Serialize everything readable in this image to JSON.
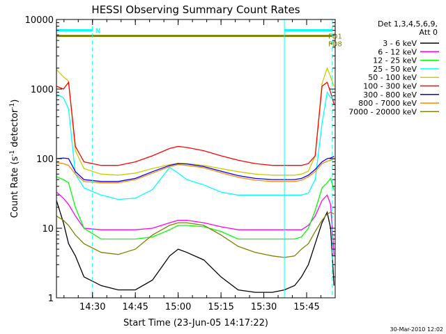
{
  "chart_data": {
    "type": "line",
    "title": "HESSI Observing Summary Count Rates",
    "xlabel": "Start Time (23-Jun-05 14:17:22)",
    "ylabel_main": "Count Rate (s",
    "ylabel_sup1": "-1",
    "ylabel_mid": " detector",
    "ylabel_sup2": "-1",
    "ylabel_end": ")",
    "y_scale": "log",
    "ylim": [
      1,
      10000
    ],
    "xlim": [
      14.2894,
      15.9167
    ],
    "y_ticks": [
      {
        "value": 1,
        "label": "1"
      },
      {
        "value": 10,
        "label": "10"
      },
      {
        "value": 100,
        "label": "100"
      },
      {
        "value": 1000,
        "label": "1000"
      },
      {
        "value": 10000,
        "label": "10000"
      }
    ],
    "x_ticks": [
      {
        "value": 14.5,
        "label": "14:30"
      },
      {
        "value": 14.75,
        "label": "14:45"
      },
      {
        "value": 15.0,
        "label": "15:00"
      },
      {
        "value": 15.25,
        "label": "15:15"
      },
      {
        "value": 15.5,
        "label": "15:30"
      },
      {
        "value": 15.75,
        "label": "15:45"
      }
    ],
    "legend_header_1": "Det 1,3,4,5,6,9,",
    "legend_header_2": "Att 0",
    "legend_placement": "right",
    "series": [
      {
        "name": "3 - 6 keV",
        "color": "#000000",
        "x": [
          14.29,
          14.33,
          14.36,
          14.4,
          14.45,
          14.55,
          14.65,
          14.75,
          14.85,
          14.95,
          15.0,
          15.05,
          15.15,
          15.25,
          15.35,
          15.45,
          15.55,
          15.62,
          15.68,
          15.72,
          15.76,
          15.8,
          15.84,
          15.87,
          15.89,
          15.91
        ],
        "y": [
          25,
          12,
          6,
          4,
          2,
          1.5,
          1.3,
          1.3,
          1.8,
          4,
          5,
          4.5,
          3.5,
          2,
          1.3,
          1.2,
          1.2,
          1.3,
          1.5,
          2,
          3,
          6,
          12,
          17,
          10,
          1.5
        ]
      },
      {
        "name": "6 - 12 keV",
        "color": "#ff00ff",
        "x": [
          14.29,
          14.33,
          14.36,
          14.4,
          14.45,
          14.55,
          14.65,
          14.75,
          14.85,
          14.95,
          15.0,
          15.05,
          15.15,
          15.25,
          15.35,
          15.45,
          15.55,
          15.62,
          15.68,
          15.72,
          15.76,
          15.8,
          15.84,
          15.87,
          15.89,
          15.91
        ],
        "y": [
          33,
          27,
          22,
          15,
          10,
          9.5,
          9.5,
          9.5,
          10,
          12,
          13,
          13,
          12,
          10.5,
          9.5,
          9.5,
          9.5,
          9.5,
          9.5,
          9.5,
          11,
          15,
          25,
          30,
          22,
          4
        ]
      },
      {
        "name": "12 - 25 keV",
        "color": "#00ff00",
        "x": [
          14.29,
          14.33,
          14.36,
          14.4,
          14.45,
          14.55,
          14.65,
          14.75,
          14.85,
          14.95,
          15.0,
          15.05,
          15.15,
          15.25,
          15.35,
          15.45,
          15.55,
          15.62,
          15.68,
          15.72,
          15.76,
          15.8,
          15.84,
          15.87,
          15.89,
          15.91
        ],
        "y": [
          55,
          50,
          45,
          20,
          10,
          7,
          7,
          7,
          7.5,
          9.5,
          11,
          11,
          10.5,
          9,
          7,
          7,
          7,
          7,
          7,
          7.5,
          10,
          18,
          38,
          45,
          52,
          35
        ]
      },
      {
        "name": "25 - 50 keV",
        "color": "#00ffff",
        "x": [
          14.29,
          14.33,
          14.36,
          14.4,
          14.45,
          14.55,
          14.65,
          14.75,
          14.85,
          14.95,
          15.0,
          15.05,
          15.15,
          15.25,
          15.35,
          15.45,
          15.55,
          15.62,
          15.68,
          15.72,
          15.76,
          15.8,
          15.84,
          15.87,
          15.89,
          15.91
        ],
        "y": [
          850,
          750,
          520,
          60,
          38,
          30,
          26,
          27,
          36,
          75,
          62,
          50,
          42,
          33,
          30,
          30,
          30,
          30,
          30,
          30,
          32,
          50,
          320,
          900,
          750,
          720
        ]
      },
      {
        "name": "50 - 100 keV",
        "color": "#cccc00",
        "x": [
          14.29,
          14.33,
          14.36,
          14.4,
          14.45,
          14.55,
          14.65,
          14.75,
          14.85,
          14.95,
          15.0,
          15.05,
          15.15,
          15.25,
          15.35,
          15.45,
          15.55,
          15.62,
          15.68,
          15.72,
          15.76,
          15.8,
          15.84,
          15.87,
          15.89,
          15.91
        ],
        "y": [
          1900,
          1500,
          1300,
          130,
          72,
          60,
          58,
          62,
          72,
          82,
          86,
          85,
          80,
          72,
          65,
          60,
          58,
          58,
          58,
          60,
          66,
          110,
          1200,
          2000,
          1500,
          1100
        ]
      },
      {
        "name": "100 - 300 keV",
        "color": "#ff0000",
        "x": [
          14.29,
          14.33,
          14.36,
          14.4,
          14.45,
          14.55,
          14.65,
          14.75,
          14.85,
          14.95,
          15.0,
          15.05,
          15.15,
          15.25,
          15.35,
          15.45,
          15.55,
          15.62,
          15.68,
          15.72,
          15.76,
          15.8,
          15.84,
          15.87,
          15.89,
          15.91
        ],
        "y": [
          1100,
          1000,
          1250,
          150,
          90,
          80,
          80,
          90,
          110,
          140,
          150,
          145,
          130,
          110,
          95,
          85,
          80,
          80,
          80,
          80,
          85,
          110,
          1100,
          1250,
          900,
          600
        ]
      },
      {
        "name": "300 - 800 keV",
        "color": "#0000ff",
        "x": [
          14.29,
          14.33,
          14.36,
          14.4,
          14.45,
          14.55,
          14.65,
          14.75,
          14.85,
          14.95,
          15.0,
          15.05,
          15.15,
          15.25,
          15.35,
          15.45,
          15.55,
          15.62,
          15.68,
          15.72,
          15.76,
          15.8,
          15.84,
          15.87,
          15.89,
          15.91
        ],
        "y": [
          100,
          102,
          100,
          65,
          50,
          47,
          47,
          52,
          65,
          80,
          85,
          84,
          77,
          66,
          57,
          52,
          50,
          50,
          50,
          52,
          58,
          70,
          90,
          100,
          102,
          108
        ]
      },
      {
        "name": "800 - 7000 keV",
        "color": "#ff8800",
        "x": [
          14.29,
          14.33,
          14.36,
          14.4,
          14.45,
          14.55,
          14.65,
          14.75,
          14.85,
          14.95,
          15.0,
          15.05,
          15.15,
          15.25,
          15.35,
          15.45,
          15.55,
          15.62,
          15.68,
          15.72,
          15.76,
          15.8,
          15.84,
          15.87,
          15.89,
          15.91
        ],
        "y": [
          88,
          85,
          80,
          60,
          47,
          45,
          45,
          50,
          62,
          77,
          82,
          80,
          74,
          63,
          54,
          49,
          47,
          47,
          47,
          49,
          55,
          65,
          85,
          92,
          95,
          100
        ]
      },
      {
        "name": "7000 - 20000 keV",
        "color": "#808000",
        "x": [
          14.29,
          14.33,
          14.36,
          14.4,
          14.45,
          14.55,
          14.65,
          14.75,
          14.85,
          14.95,
          15.0,
          15.05,
          15.15,
          15.25,
          15.35,
          15.45,
          15.55,
          15.62,
          15.68,
          15.72,
          15.76,
          15.8,
          15.84,
          15.87,
          15.89,
          15.91
        ],
        "y": [
          15,
          13,
          11,
          8,
          6,
          4.5,
          4.2,
          5,
          8,
          11,
          12,
          12,
          11,
          8,
          5.5,
          4.5,
          4,
          3.8,
          4,
          5,
          6,
          9,
          13,
          16,
          17,
          16
        ]
      }
    ],
    "flags": [
      {
        "label": "",
        "color": "#00ffff",
        "y": 7000,
        "segments": [
          [
            14.29,
            14.5
          ],
          [
            15.62,
            15.9
          ]
        ]
      },
      {
        "label": "FD1",
        "color": "#808000",
        "y": 5800,
        "segments": [
          [
            14.29,
            15.9
          ]
        ]
      },
      {
        "label": "FD8",
        "color": "#808000",
        "y": 4500,
        "segments": [
          [
            15.89,
            15.9
          ]
        ]
      }
    ],
    "flag_marker_text": "N",
    "vertical_solid": [
      14.29,
      15.62
    ],
    "vertical_dashed": [
      14.5,
      15.9
    ],
    "grid": false
  },
  "footer": {
    "timestamp": "30-Mar-2010 12:02"
  }
}
